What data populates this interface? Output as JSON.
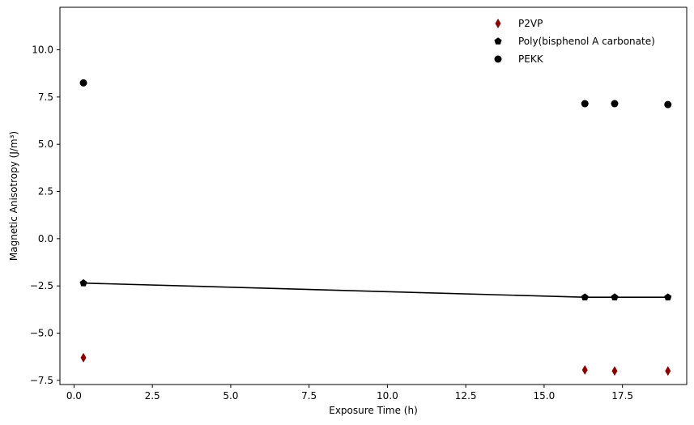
{
  "chart_data": {
    "type": "scatter",
    "title": "",
    "xlabel": "Exposure Time (h)",
    "ylabel": "Magnetic Anisotropy (J/m³)",
    "xlim": [
      -0.45,
      19.55
    ],
    "ylim": [
      -7.72,
      12.25
    ],
    "x_ticks": [
      0.0,
      2.5,
      5.0,
      7.5,
      10.0,
      12.5,
      15.0,
      17.5
    ],
    "x_tick_labels": [
      "0.0",
      "2.5",
      "5.0",
      "7.5",
      "10.0",
      "12.5",
      "15.0",
      "17.5"
    ],
    "y_ticks": [
      -7.5,
      -5.0,
      -2.5,
      0.0,
      2.5,
      5.0,
      7.5,
      10.0
    ],
    "y_tick_labels": [
      "−7.5",
      "−5.0",
      "−2.5",
      "0.0",
      "2.5",
      "5.0",
      "7.5",
      "10.0"
    ],
    "grid": false,
    "legend_position": "top-right",
    "series": [
      {
        "name": "P2VP",
        "marker": "diamond",
        "color": "#8b0000",
        "line": false,
        "x": [
          0.3,
          16.3,
          17.25,
          18.95
        ],
        "y": [
          -6.3,
          -6.95,
          -7.0,
          -7.0
        ]
      },
      {
        "name": "Poly(bisphenol A carbonate)",
        "marker": "pentagon",
        "color": "#000000",
        "line": true,
        "x": [
          0.3,
          16.3,
          17.25,
          18.95
        ],
        "y": [
          -2.35,
          -3.1,
          -3.1,
          -3.1
        ]
      },
      {
        "name": "PEKK",
        "marker": "circle",
        "color": "#000000",
        "line": false,
        "x": [
          0.3,
          16.3,
          17.25,
          18.95
        ],
        "y": [
          8.25,
          7.15,
          7.15,
          7.1
        ]
      }
    ]
  }
}
